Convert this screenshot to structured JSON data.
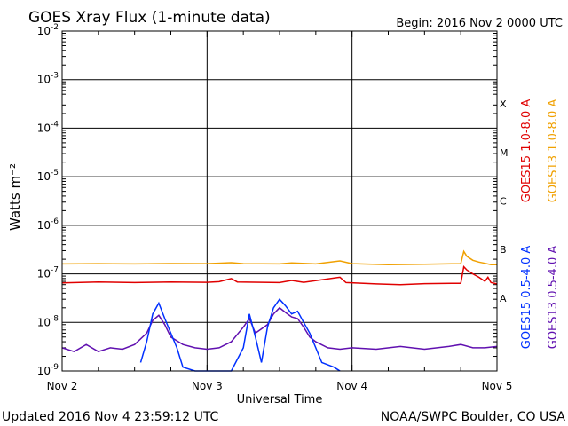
{
  "header": {
    "title": "GOES Xray Flux (1-minute data)",
    "begin": "Begin:  2016 Nov 2 0000 UTC"
  },
  "footer": {
    "updated": "Updated 2016 Nov  4 23:59:12 UTC",
    "source": "NOAA/SWPC Boulder, CO USA"
  },
  "colors": {
    "goes15_long": "#e00000",
    "goes13_long": "#f0a000",
    "goes15_short": "#0030ff",
    "goes13_short": "#6010b0",
    "grid": "#000000"
  },
  "chart_data": {
    "type": "line",
    "title": "GOES Xray Flux (1-minute data)",
    "xlabel": "Universal Time",
    "ylabel": "Watts m⁻²",
    "yscale": "log",
    "ylim": [
      1e-09,
      0.01
    ],
    "y_ticks": [
      {
        "base": "10",
        "exp": "-9"
      },
      {
        "base": "10",
        "exp": "-8"
      },
      {
        "base": "10",
        "exp": "-7"
      },
      {
        "base": "10",
        "exp": "-6"
      },
      {
        "base": "10",
        "exp": "-5"
      },
      {
        "base": "10",
        "exp": "-4"
      },
      {
        "base": "10",
        "exp": "-3"
      },
      {
        "base": "10",
        "exp": "-2"
      }
    ],
    "xlim": [
      "2016-11-02T00:00",
      "2016-11-05T00:00"
    ],
    "x_ticks": [
      {
        "label": "Nov 2",
        "time": "2016-11-02T00:00"
      },
      {
        "label": "Nov 3",
        "time": "2016-11-03T00:00"
      },
      {
        "label": "Nov 4",
        "time": "2016-11-04T00:00"
      },
      {
        "label": "Nov 5",
        "time": "2016-11-05T00:00"
      }
    ],
    "flare_classes": [
      {
        "label": "A",
        "flux": 3.16e-08
      },
      {
        "label": "B",
        "flux": 3.16e-07
      },
      {
        "label": "C",
        "flux": 3.16e-06
      },
      {
        "label": "M",
        "flux": 3.16e-05
      },
      {
        "label": "X",
        "flux": 0.000316
      }
    ],
    "legend_placement": "right",
    "series": [
      {
        "name": "GOES15 1.0-8.0 A",
        "color": "#e00000",
        "points": [
          [
            "2016-11-02T00:00",
            6.5e-08
          ],
          [
            "2016-11-02T06:00",
            6.8e-08
          ],
          [
            "2016-11-02T12:00",
            6.6e-08
          ],
          [
            "2016-11-02T18:00",
            6.8e-08
          ],
          [
            "2016-11-03T00:00",
            6.7e-08
          ],
          [
            "2016-11-03T02:00",
            6.9e-08
          ],
          [
            "2016-11-03T04:00",
            8e-08
          ],
          [
            "2016-11-03T05:00",
            6.8e-08
          ],
          [
            "2016-11-03T12:00",
            6.6e-08
          ],
          [
            "2016-11-03T14:00",
            7.3e-08
          ],
          [
            "2016-11-03T16:00",
            6.7e-08
          ],
          [
            "2016-11-03T22:00",
            8.5e-08
          ],
          [
            "2016-11-03T23:00",
            6.6e-08
          ],
          [
            "2016-11-04T04:00",
            6.2e-08
          ],
          [
            "2016-11-04T08:00",
            6e-08
          ],
          [
            "2016-11-04T12:00",
            6.3e-08
          ],
          [
            "2016-11-04T18:00",
            6.4e-08
          ],
          [
            "2016-11-04T18:30",
            1.4e-07
          ],
          [
            "2016-11-04T19:00",
            1.2e-07
          ],
          [
            "2016-11-04T20:00",
            1e-07
          ],
          [
            "2016-11-04T21:00",
            8.5e-08
          ],
          [
            "2016-11-04T22:00",
            7e-08
          ],
          [
            "2016-11-04T22:30",
            8.5e-08
          ],
          [
            "2016-11-04T23:00",
            6.6e-08
          ],
          [
            "2016-11-05T00:00",
            6.2e-08
          ]
        ]
      },
      {
        "name": "GOES13 1.0-8.0 A",
        "color": "#f0a000",
        "points": [
          [
            "2016-11-02T00:00",
            1.6e-07
          ],
          [
            "2016-11-02T06:00",
            1.62e-07
          ],
          [
            "2016-11-02T12:00",
            1.6e-07
          ],
          [
            "2016-11-02T18:00",
            1.63e-07
          ],
          [
            "2016-11-03T00:00",
            1.62e-07
          ],
          [
            "2016-11-03T04:00",
            1.7e-07
          ],
          [
            "2016-11-03T06:00",
            1.62e-07
          ],
          [
            "2016-11-03T12:00",
            1.6e-07
          ],
          [
            "2016-11-03T14:00",
            1.68e-07
          ],
          [
            "2016-11-03T18:00",
            1.6e-07
          ],
          [
            "2016-11-03T22:00",
            1.85e-07
          ],
          [
            "2016-11-04T00:00",
            1.62e-07
          ],
          [
            "2016-11-04T06:00",
            1.55e-07
          ],
          [
            "2016-11-04T12:00",
            1.58e-07
          ],
          [
            "2016-11-04T18:00",
            1.62e-07
          ],
          [
            "2016-11-04T18:30",
            2.9e-07
          ],
          [
            "2016-11-04T19:00",
            2.3e-07
          ],
          [
            "2016-11-04T20:00",
            1.9e-07
          ],
          [
            "2016-11-04T21:00",
            1.75e-07
          ],
          [
            "2016-11-04T22:00",
            1.65e-07
          ],
          [
            "2016-11-04T23:00",
            1.55e-07
          ],
          [
            "2016-11-05T00:00",
            1.55e-07
          ]
        ]
      },
      {
        "name": "GOES15 0.5-4.0 A",
        "color": "#0030ff",
        "points": [
          [
            "2016-11-02T13:00",
            1.5e-09
          ],
          [
            "2016-11-02T14:00",
            4e-09
          ],
          [
            "2016-11-02T15:00",
            1.5e-08
          ],
          [
            "2016-11-02T16:00",
            2.5e-08
          ],
          [
            "2016-11-02T17:00",
            1.2e-08
          ],
          [
            "2016-11-02T18:00",
            6e-09
          ],
          [
            "2016-11-02T19:00",
            3e-09
          ],
          [
            "2016-11-02T20:00",
            1.2e-09
          ],
          [
            "2016-11-02T22:00",
            1e-09
          ],
          [
            "2016-11-03T04:00",
            1e-09
          ],
          [
            "2016-11-03T06:00",
            3e-09
          ],
          [
            "2016-11-03T07:00",
            1.5e-08
          ],
          [
            "2016-11-03T08:00",
            5e-09
          ],
          [
            "2016-11-03T09:00",
            1.5e-09
          ],
          [
            "2016-11-03T10:00",
            8e-09
          ],
          [
            "2016-11-03T11:00",
            2e-08
          ],
          [
            "2016-11-03T12:00",
            3e-08
          ],
          [
            "2016-11-03T13:00",
            2.2e-08
          ],
          [
            "2016-11-03T14:00",
            1.5e-08
          ],
          [
            "2016-11-03T15:00",
            1.7e-08
          ],
          [
            "2016-11-03T16:00",
            1e-08
          ],
          [
            "2016-11-03T17:00",
            6e-09
          ],
          [
            "2016-11-03T18:00",
            3e-09
          ],
          [
            "2016-11-03T19:00",
            1.5e-09
          ],
          [
            "2016-11-03T21:00",
            1.2e-09
          ],
          [
            "2016-11-03T22:00",
            1e-09
          ]
        ]
      },
      {
        "name": "GOES13 0.5-4.0 A",
        "color": "#6010b0",
        "points": [
          [
            "2016-11-02T00:00",
            3e-09
          ],
          [
            "2016-11-02T02:00",
            2.5e-09
          ],
          [
            "2016-11-02T04:00",
            3.5e-09
          ],
          [
            "2016-11-02T06:00",
            2.5e-09
          ],
          [
            "2016-11-02T08:00",
            3e-09
          ],
          [
            "2016-11-02T10:00",
            2.8e-09
          ],
          [
            "2016-11-02T12:00",
            3.5e-09
          ],
          [
            "2016-11-02T14:00",
            6e-09
          ],
          [
            "2016-11-02T15:00",
            1.1e-08
          ],
          [
            "2016-11-02T16:00",
            1.4e-08
          ],
          [
            "2016-11-02T17:00",
            9e-09
          ],
          [
            "2016-11-02T18:00",
            5e-09
          ],
          [
            "2016-11-02T20:00",
            3.5e-09
          ],
          [
            "2016-11-02T22:00",
            3e-09
          ],
          [
            "2016-11-03T00:00",
            2.8e-09
          ],
          [
            "2016-11-03T02:00",
            3e-09
          ],
          [
            "2016-11-03T04:00",
            4e-09
          ],
          [
            "2016-11-03T06:00",
            8e-09
          ],
          [
            "2016-11-03T07:00",
            1.2e-08
          ],
          [
            "2016-11-03T08:00",
            6e-09
          ],
          [
            "2016-11-03T10:00",
            9e-09
          ],
          [
            "2016-11-03T11:00",
            1.5e-08
          ],
          [
            "2016-11-03T12:00",
            2e-08
          ],
          [
            "2016-11-03T13:00",
            1.6e-08
          ],
          [
            "2016-11-03T14:00",
            1.3e-08
          ],
          [
            "2016-11-03T15:00",
            1.2e-08
          ],
          [
            "2016-11-03T16:00",
            8e-09
          ],
          [
            "2016-11-03T17:00",
            5e-09
          ],
          [
            "2016-11-03T18:00",
            4e-09
          ],
          [
            "2016-11-03T20:00",
            3e-09
          ],
          [
            "2016-11-03T22:00",
            2.8e-09
          ],
          [
            "2016-11-04T00:00",
            3e-09
          ],
          [
            "2016-11-04T04:00",
            2.8e-09
          ],
          [
            "2016-11-04T08:00",
            3.2e-09
          ],
          [
            "2016-11-04T12:00",
            2.8e-09
          ],
          [
            "2016-11-04T16:00",
            3.2e-09
          ],
          [
            "2016-11-04T18:00",
            3.5e-09
          ],
          [
            "2016-11-04T20:00",
            3e-09
          ],
          [
            "2016-11-04T22:00",
            3e-09
          ],
          [
            "2016-11-05T00:00",
            3.2e-09
          ]
        ]
      }
    ]
  }
}
